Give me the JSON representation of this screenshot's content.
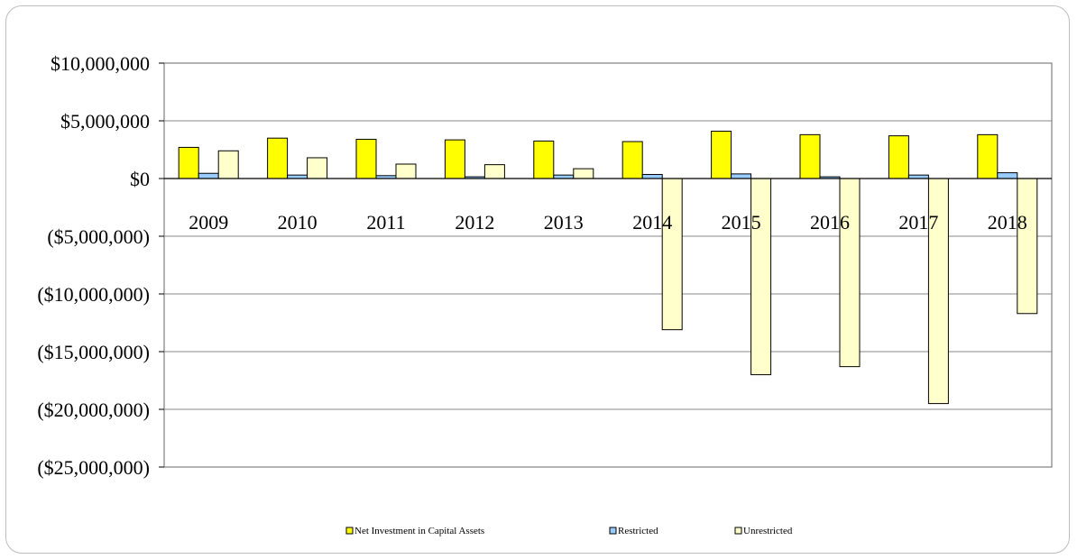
{
  "chart_data": {
    "type": "bar",
    "categories": [
      "2009",
      "2010",
      "2011",
      "2012",
      "2013",
      "2014",
      "2015",
      "2016",
      "2017",
      "2018"
    ],
    "series": [
      {
        "name": "Net Investment in Capital Assets",
        "color": "#ffff00",
        "values": [
          2700000,
          3500000,
          3400000,
          3350000,
          3250000,
          3200000,
          4100000,
          3800000,
          3700000,
          3800000
        ]
      },
      {
        "name": "Restricted",
        "color": "#99ccff",
        "values": [
          450000,
          300000,
          250000,
          150000,
          300000,
          350000,
          400000,
          150000,
          300000,
          500000
        ]
      },
      {
        "name": "Unrestricted",
        "color": "#ffffcc",
        "values": [
          2400000,
          1800000,
          1250000,
          1200000,
          850000,
          -13100000,
          -17000000,
          -16300000,
          -19500000,
          -11700000
        ]
      }
    ],
    "y_ticks": [
      "$10,000,000",
      "$5,000,000",
      "$0",
      "($5,000,000)",
      "($10,000,000)",
      "($15,000,000)",
      "($20,000,000)",
      "($25,000,000)"
    ],
    "ylim": [
      -25000000,
      10000000
    ],
    "grid": true,
    "legend_position": "bottom"
  }
}
